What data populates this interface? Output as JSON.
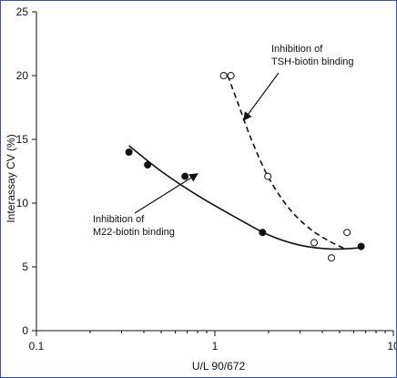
{
  "chart_data": {
    "type": "scatter",
    "title": "",
    "xlabel": "U/L 90/672",
    "ylabel": "Interassay CV (%)",
    "x_scale": "log",
    "xlim": [
      0.1,
      10
    ],
    "ylim": [
      0,
      25
    ],
    "x_ticks": [
      0.1,
      1,
      10
    ],
    "x_tick_labels": [
      "0.1",
      "1",
      "10"
    ],
    "y_ticks": [
      0,
      5,
      10,
      15,
      20,
      25
    ],
    "y_tick_labels": [
      "0",
      "5",
      "10",
      "15",
      "20",
      "25"
    ],
    "grid": false,
    "series": [
      {
        "marker": "filled-circle",
        "x": [
          0.33,
          0.42,
          0.68,
          1.85,
          6.6
        ],
        "y": [
          14.0,
          13.0,
          12.1,
          7.7,
          6.6
        ],
        "fit_line": "solid",
        "fit_x": [
          0.33,
          0.5,
          0.8,
          1.3,
          2.0,
          3.0,
          4.5,
          6.6
        ],
        "fit_y": [
          14.5,
          12.5,
          10.6,
          8.9,
          7.5,
          6.7,
          6.4,
          6.5
        ]
      },
      {
        "marker": "open-circle",
        "x": [
          1.12,
          1.23,
          1.98,
          3.6,
          4.5,
          5.5
        ],
        "y": [
          20.0,
          20.0,
          12.1,
          6.9,
          5.7,
          7.7
        ],
        "fit_line": "dashed",
        "fit_x": [
          1.18,
          1.35,
          1.6,
          2.0,
          2.6,
          3.4,
          4.4,
          5.4
        ],
        "fit_y": [
          20.0,
          17.8,
          15.0,
          12.0,
          9.6,
          8.0,
          7.0,
          6.4
        ]
      }
    ],
    "annotations": [
      {
        "lines": [
          "Inhibition of",
          "TSH-biotin binding"
        ],
        "arrow_to": [
          1.45,
          16.5
        ]
      },
      {
        "lines": [
          "Inhibition of",
          "M22-biotin binding"
        ],
        "arrow_to": [
          0.8,
          12.3
        ]
      }
    ],
    "colors": {
      "ink": "#111111",
      "frame": "#3a4fb5"
    }
  }
}
